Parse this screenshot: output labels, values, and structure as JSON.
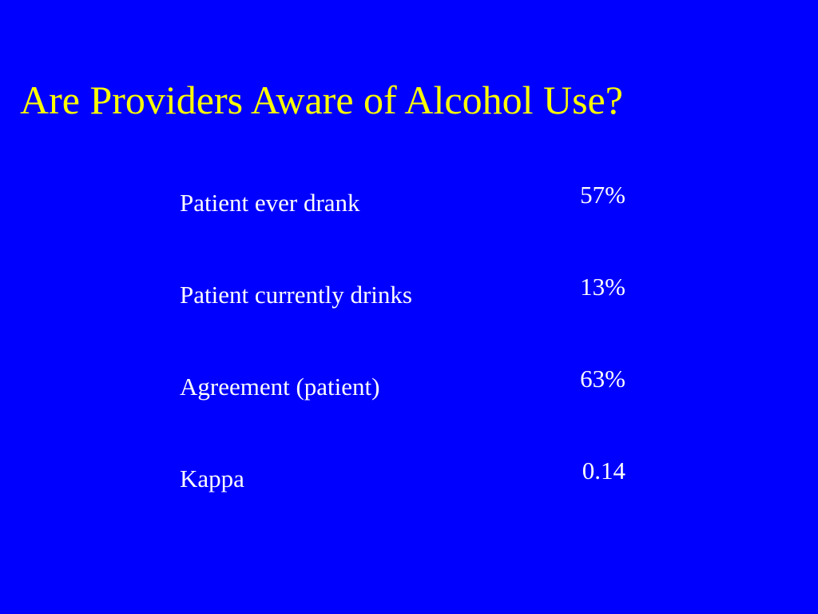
{
  "header": {
    "title": "Are Providers Aware of Alcohol Use?"
  },
  "table": {
    "rows": [
      [
        "Patient ever drank",
        "57%"
      ],
      [
        "Patient currently drinks",
        "13%"
      ],
      [
        "Agreement (patient)",
        "63%"
      ],
      [
        "Kappa",
        "0.14"
      ]
    ]
  }
}
